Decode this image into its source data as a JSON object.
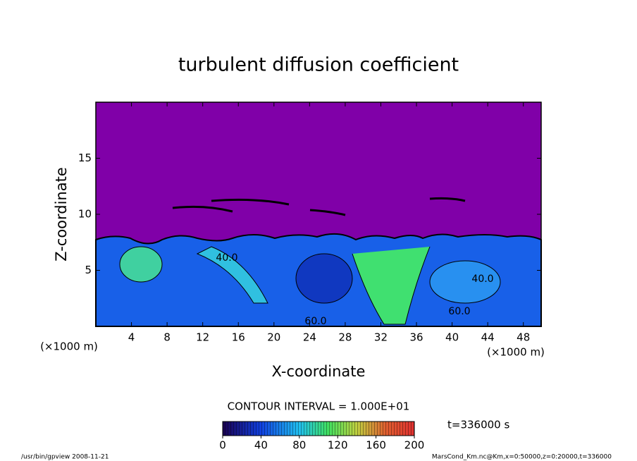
{
  "chart_data": {
    "type": "contour",
    "title": "turbulent diffusion coefficient",
    "x_label": "X-coordinate",
    "y_label": "Z-coordinate",
    "x_unit_left": "(×1000 m)",
    "x_unit_right": "(×1000 m)",
    "xlim": [
      0,
      50
    ],
    "xticks": [
      4,
      8,
      12,
      16,
      20,
      24,
      28,
      32,
      36,
      40,
      44,
      48
    ],
    "ylim": [
      0,
      20
    ],
    "yticks": [
      5,
      10,
      15
    ],
    "contour_interval": "CONTOUR INTERVAL = 1.000E+01",
    "contour_labels": [
      "40.0",
      "60.0",
      "40.0",
      "60.0"
    ],
    "colorbar": {
      "clim": [
        0,
        200
      ],
      "ticks": [
        0,
        40,
        80,
        120,
        160,
        200
      ]
    },
    "time_label": "t=336000 s",
    "footer_left": "/usr/bin/gpview  2008-11-21",
    "footer_right": "MarsCond_Km.nc@Km,x=0:50000,z=0:20000,t=336000"
  }
}
